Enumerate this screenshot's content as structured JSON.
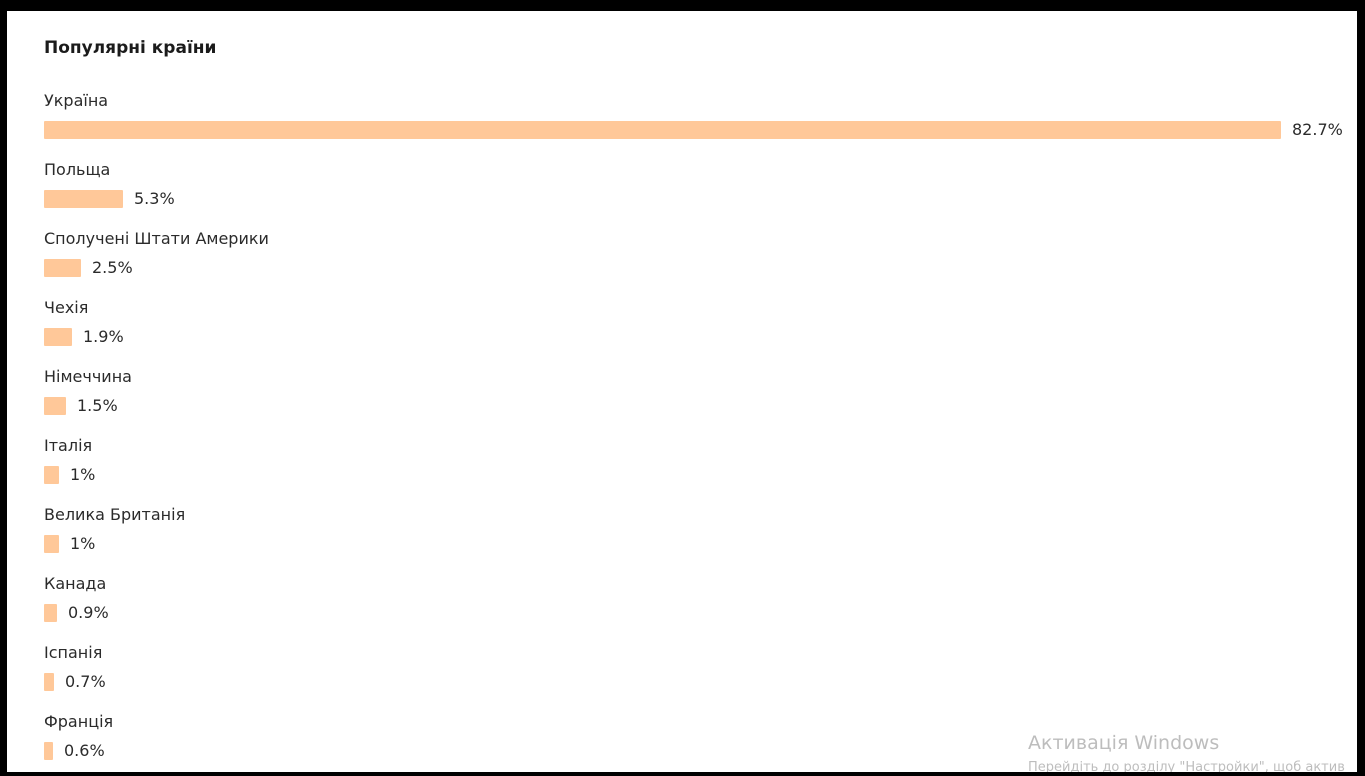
{
  "panel": {
    "title": "Популярні країни"
  },
  "countries": [
    {
      "name": "Україна",
      "percent_label": "82.7%",
      "value": 82.7
    },
    {
      "name": "Польща",
      "percent_label": "5.3%",
      "value": 5.3
    },
    {
      "name": "Сполучені Штати Америки",
      "percent_label": "2.5%",
      "value": 2.5
    },
    {
      "name": "Чехія",
      "percent_label": "1.9%",
      "value": 1.9
    },
    {
      "name": "Німеччина",
      "percent_label": "1.5%",
      "value": 1.5
    },
    {
      "name": "Італія",
      "percent_label": "1%",
      "value": 1
    },
    {
      "name": "Велика Британія",
      "percent_label": "1%",
      "value": 1
    },
    {
      "name": "Канада",
      "percent_label": "0.9%",
      "value": 0.9
    },
    {
      "name": "Іспанія",
      "percent_label": "0.7%",
      "value": 0.7
    },
    {
      "name": "Франція",
      "percent_label": "0.6%",
      "value": 0.6
    }
  ],
  "bar_color": "#ffc899",
  "watermark": {
    "title": "Активація Windows",
    "subtitle": "Перейдіть до розділу \"Настройки\", щоб актив"
  }
}
